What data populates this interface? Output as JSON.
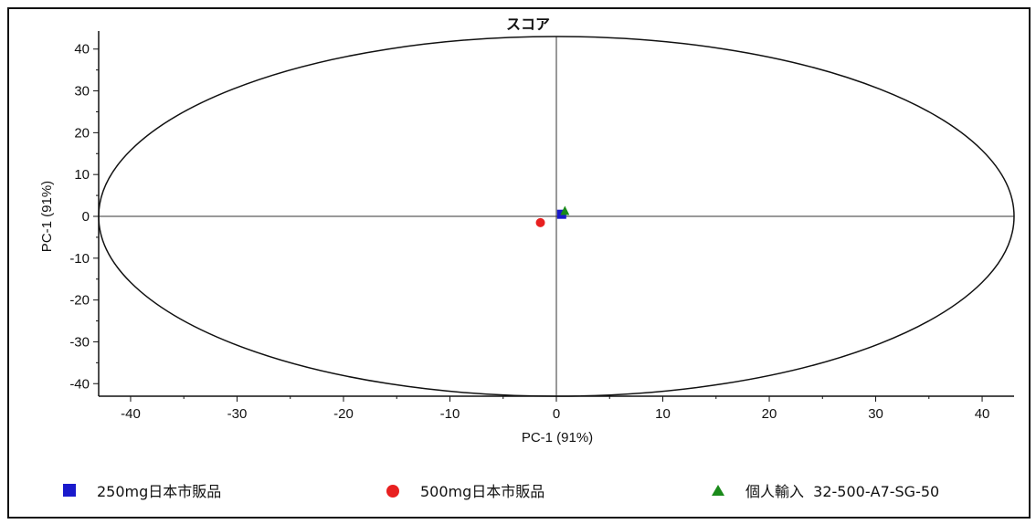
{
  "chart_data": {
    "type": "scatter",
    "title": "スコア",
    "xlabel": "PC-1 (91%)",
    "ylabel": "PC-1 (91%)",
    "xlim": [
      -43,
      43
    ],
    "ylim": [
      -43,
      43
    ],
    "xticks": [
      -40,
      -30,
      -20,
      -10,
      0,
      10,
      20,
      30,
      40
    ],
    "yticks": [
      40,
      30,
      20,
      10,
      0,
      -10,
      -20,
      -30,
      -40
    ],
    "grid": false,
    "legend_position": "bottom",
    "ellipse": {
      "center": [
        0,
        0
      ],
      "rx": 43,
      "ry": 43
    },
    "series": [
      {
        "name": "250mg日本市販品",
        "marker": "square",
        "color": "#1a1acc",
        "points": [
          [
            0.5,
            0.5
          ]
        ]
      },
      {
        "name": "500mg日本市販品",
        "marker": "circle",
        "color": "#e82020",
        "points": [
          [
            -1.5,
            -1.5
          ]
        ]
      },
      {
        "name": "個人輸入  32-500-A7-SG-50",
        "marker": "triangle",
        "color": "#1a8a1a",
        "points": [
          [
            0.8,
            1.2
          ]
        ]
      }
    ]
  }
}
